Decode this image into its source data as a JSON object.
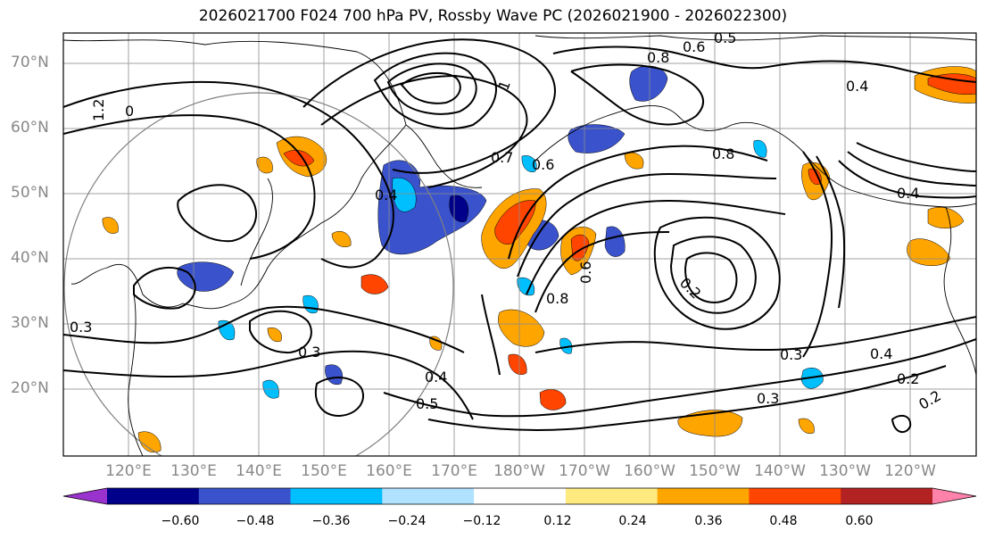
{
  "figure": {
    "title": "2026021700 F024 700 hPa PV, Rossby Wave PC (2026021900 - 2026022300)"
  },
  "axes": {
    "lat_labels": [
      "70°N",
      "60°N",
      "50°N",
      "40°N",
      "30°N",
      "20°N"
    ],
    "lon_labels": [
      "120°E",
      "130°E",
      "140°E",
      "150°E",
      "160°E",
      "170°E",
      "180°W",
      "170°W",
      "160°W",
      "150°W",
      "140°W",
      "130°W",
      "120°W"
    ]
  },
  "contour_labels": [
    "0.5",
    "0.6",
    "0.4",
    "0.8",
    "1.2",
    "0",
    "0.3",
    "0.4",
    "0.2",
    "0.3",
    "0.4",
    "0.2",
    "0.3",
    "0.3",
    "0.5",
    "0.4",
    "0.7",
    "0.6",
    "0.8",
    "1",
    "0.2",
    "0.6",
    "0.8",
    "0.4"
  ],
  "colorbar": {
    "ticks": [
      "−0.60",
      "−0.48",
      "−0.36",
      "−0.24",
      "−0.12",
      "0.12",
      "0.24",
      "0.36",
      "0.48",
      "0.60"
    ],
    "colors": [
      "#9a32cd",
      "#00008b",
      "#3a53cc",
      "#00bfff",
      "#b0e2ff",
      "#ffffff",
      "#ffea80",
      "#ffa500",
      "#ff4500",
      "#b22222",
      "#ff82ab"
    ]
  }
}
